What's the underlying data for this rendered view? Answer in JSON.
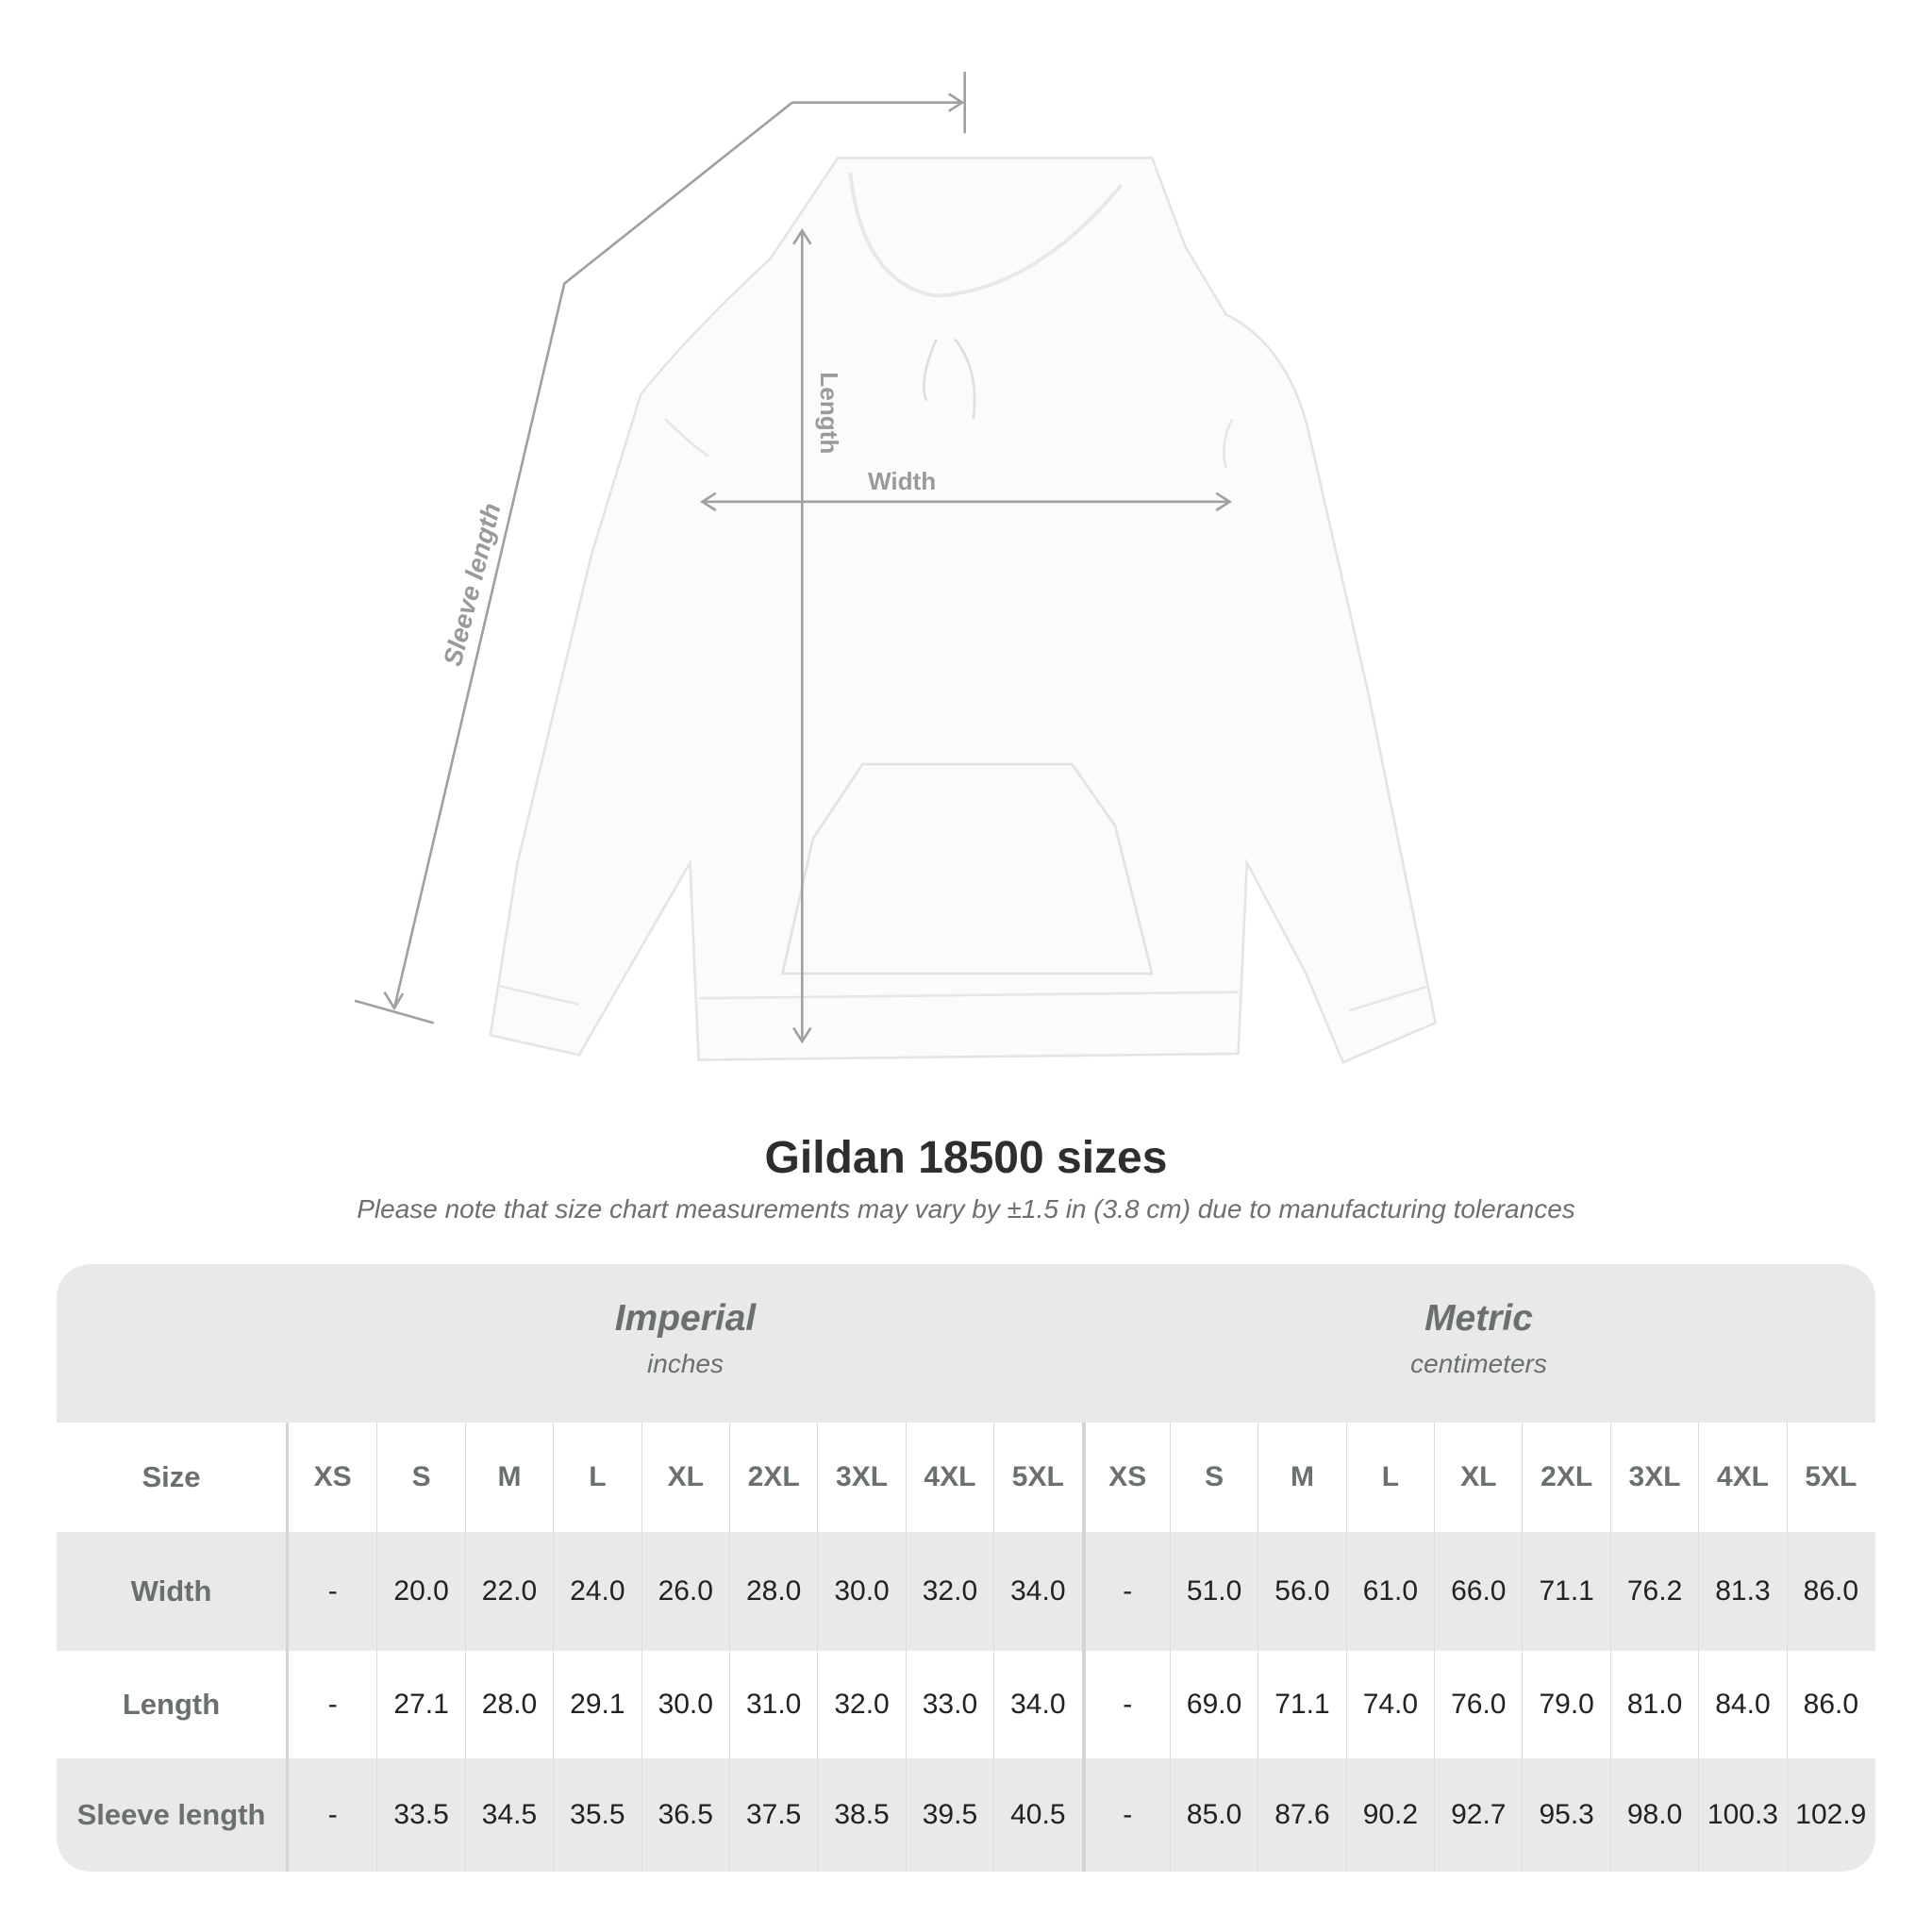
{
  "diagram": {
    "labels": {
      "length": "Length",
      "width": "Width",
      "sleeve": "Sleeve length"
    }
  },
  "title": "Gildan 18500 sizes",
  "note": "Please note that size chart measurements may vary by ±1.5 in (3.8 cm) due to manufacturing tolerances",
  "table": {
    "imperial": {
      "name": "Imperial",
      "unit": "inches"
    },
    "metric": {
      "name": "Metric",
      "unit": "centimeters"
    },
    "size_label": "Size",
    "sizes": [
      "XS",
      "S",
      "M",
      "L",
      "XL",
      "2XL",
      "3XL",
      "4XL",
      "5XL"
    ],
    "rows": [
      {
        "label": "Width",
        "imperial": [
          "-",
          "20.0",
          "22.0",
          "24.0",
          "26.0",
          "28.0",
          "30.0",
          "32.0",
          "34.0"
        ],
        "metric": [
          "-",
          "51.0",
          "56.0",
          "61.0",
          "66.0",
          "71.1",
          "76.2",
          "81.3",
          "86.0"
        ]
      },
      {
        "label": "Length",
        "imperial": [
          "-",
          "27.1",
          "28.0",
          "29.1",
          "30.0",
          "31.0",
          "32.0",
          "33.0",
          "34.0"
        ],
        "metric": [
          "-",
          "69.0",
          "71.1",
          "74.0",
          "76.0",
          "79.0",
          "81.0",
          "84.0",
          "86.0"
        ]
      },
      {
        "label": "Sleeve length",
        "imperial": [
          "-",
          "33.5",
          "34.5",
          "35.5",
          "36.5",
          "37.5",
          "38.5",
          "39.5",
          "40.5"
        ],
        "metric": [
          "-",
          "85.0",
          "87.6",
          "90.2",
          "92.7",
          "95.3",
          "98.0",
          "100.3",
          "102.9"
        ]
      }
    ]
  },
  "colors": {
    "band": "#e9e9e9",
    "header_text": "#6a6f70",
    "measure_line": "#a0a0a0"
  }
}
